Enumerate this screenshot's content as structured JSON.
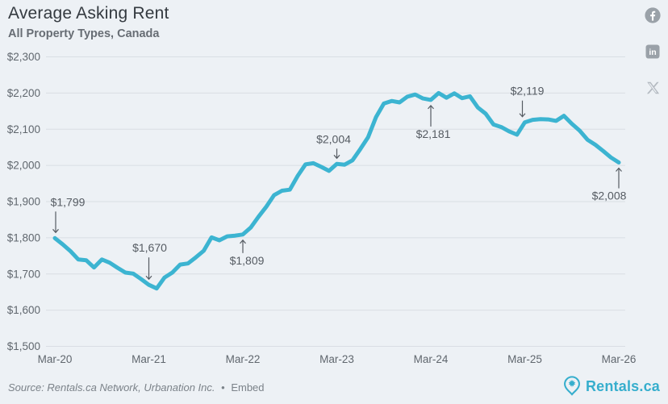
{
  "header": {
    "title": "Average Asking Rent",
    "subtitle": "All Property Types, Canada"
  },
  "social": {
    "facebook_label": "facebook-share",
    "linkedin_label": "linkedin-share",
    "x_label": "x-share"
  },
  "chart_data": {
    "type": "line",
    "title": "Average Asking Rent",
    "subtitle": "All Property Types, Canada",
    "x_unit": "month",
    "x_start": "Mar-20",
    "x_end": "Mar-26",
    "x_tick_labels": [
      "Mar-20",
      "Mar-21",
      "Mar-22",
      "Mar-23",
      "Mar-24",
      "Mar-25",
      "Mar-26"
    ],
    "x_tick_indices": [
      0,
      12,
      24,
      36,
      48,
      60,
      72
    ],
    "ylim": [
      1500,
      2300
    ],
    "y_tick_values": [
      1500,
      1600,
      1700,
      1800,
      1900,
      2000,
      2100,
      2200,
      2300
    ],
    "grid": true,
    "legend": "none",
    "series": [
      {
        "name": "Average Asking Rent (CAD)",
        "values": [
          1799,
          1782,
          1763,
          1740,
          1738,
          1718,
          1740,
          1731,
          1717,
          1704,
          1701,
          1686,
          1670,
          1660,
          1690,
          1704,
          1726,
          1729,
          1746,
          1764,
          1801,
          1793,
          1804,
          1806,
          1809,
          1828,
          1858,
          1886,
          1918,
          1930,
          1933,
          1971,
          2003,
          2006,
          1996,
          1985,
          2004,
          2002,
          2014,
          2045,
          2078,
          2133,
          2171,
          2178,
          2174,
          2190,
          2196,
          2185,
          2181,
          2200,
          2187,
          2199,
          2186,
          2191,
          2160,
          2143,
          2113,
          2106,
          2094,
          2085,
          2119,
          2126,
          2128,
          2127,
          2123,
          2137,
          2115,
          2096,
          2071,
          2057,
          2040,
          2022,
          2008
        ]
      }
    ],
    "annotations": [
      {
        "label": "$1,799",
        "index": 0,
        "side": "above",
        "dx": 16,
        "adx": 1,
        "gap": 40
      },
      {
        "label": "$1,670",
        "index": 12,
        "side": "above",
        "dx": 1,
        "adx": 0,
        "gap": 41
      },
      {
        "label": "$1,809",
        "index": 24,
        "side": "below",
        "dx": 5,
        "adx": 0,
        "gap": 37
      },
      {
        "label": "$2,004",
        "index": 36,
        "side": "above",
        "dx": -4,
        "adx": 0,
        "gap": 26
      },
      {
        "label": "$2,181",
        "index": 48,
        "side": "below",
        "dx": 3,
        "adx": 0,
        "gap": 47
      },
      {
        "label": "$2,119",
        "index": 60,
        "side": "above",
        "dx": 3,
        "adx": -3,
        "gap": 34
      },
      {
        "label": "$2,008",
        "index": 72,
        "side": "below",
        "dx": -12,
        "adx": 0,
        "gap": 46
      }
    ]
  },
  "footer": {
    "source": "Source: Rentals.ca Network, Urbanation Inc.",
    "separator": "•",
    "embed": "Embed",
    "brand": "Rentals.ca"
  },
  "colors": {
    "background": "#edf1f5",
    "grid": "#d9dee4",
    "line": "#3cb4d1",
    "axis_text": "#60676e",
    "annotation_text": "#555b62",
    "arrow": "#555b62",
    "title_text": "#343a40",
    "subtitle_text": "#676d74",
    "footer_text": "#7b8289",
    "brand_teal": "#36aecd",
    "social_gray": "#9aa1a8",
    "x_gray": "#b4bac1"
  }
}
